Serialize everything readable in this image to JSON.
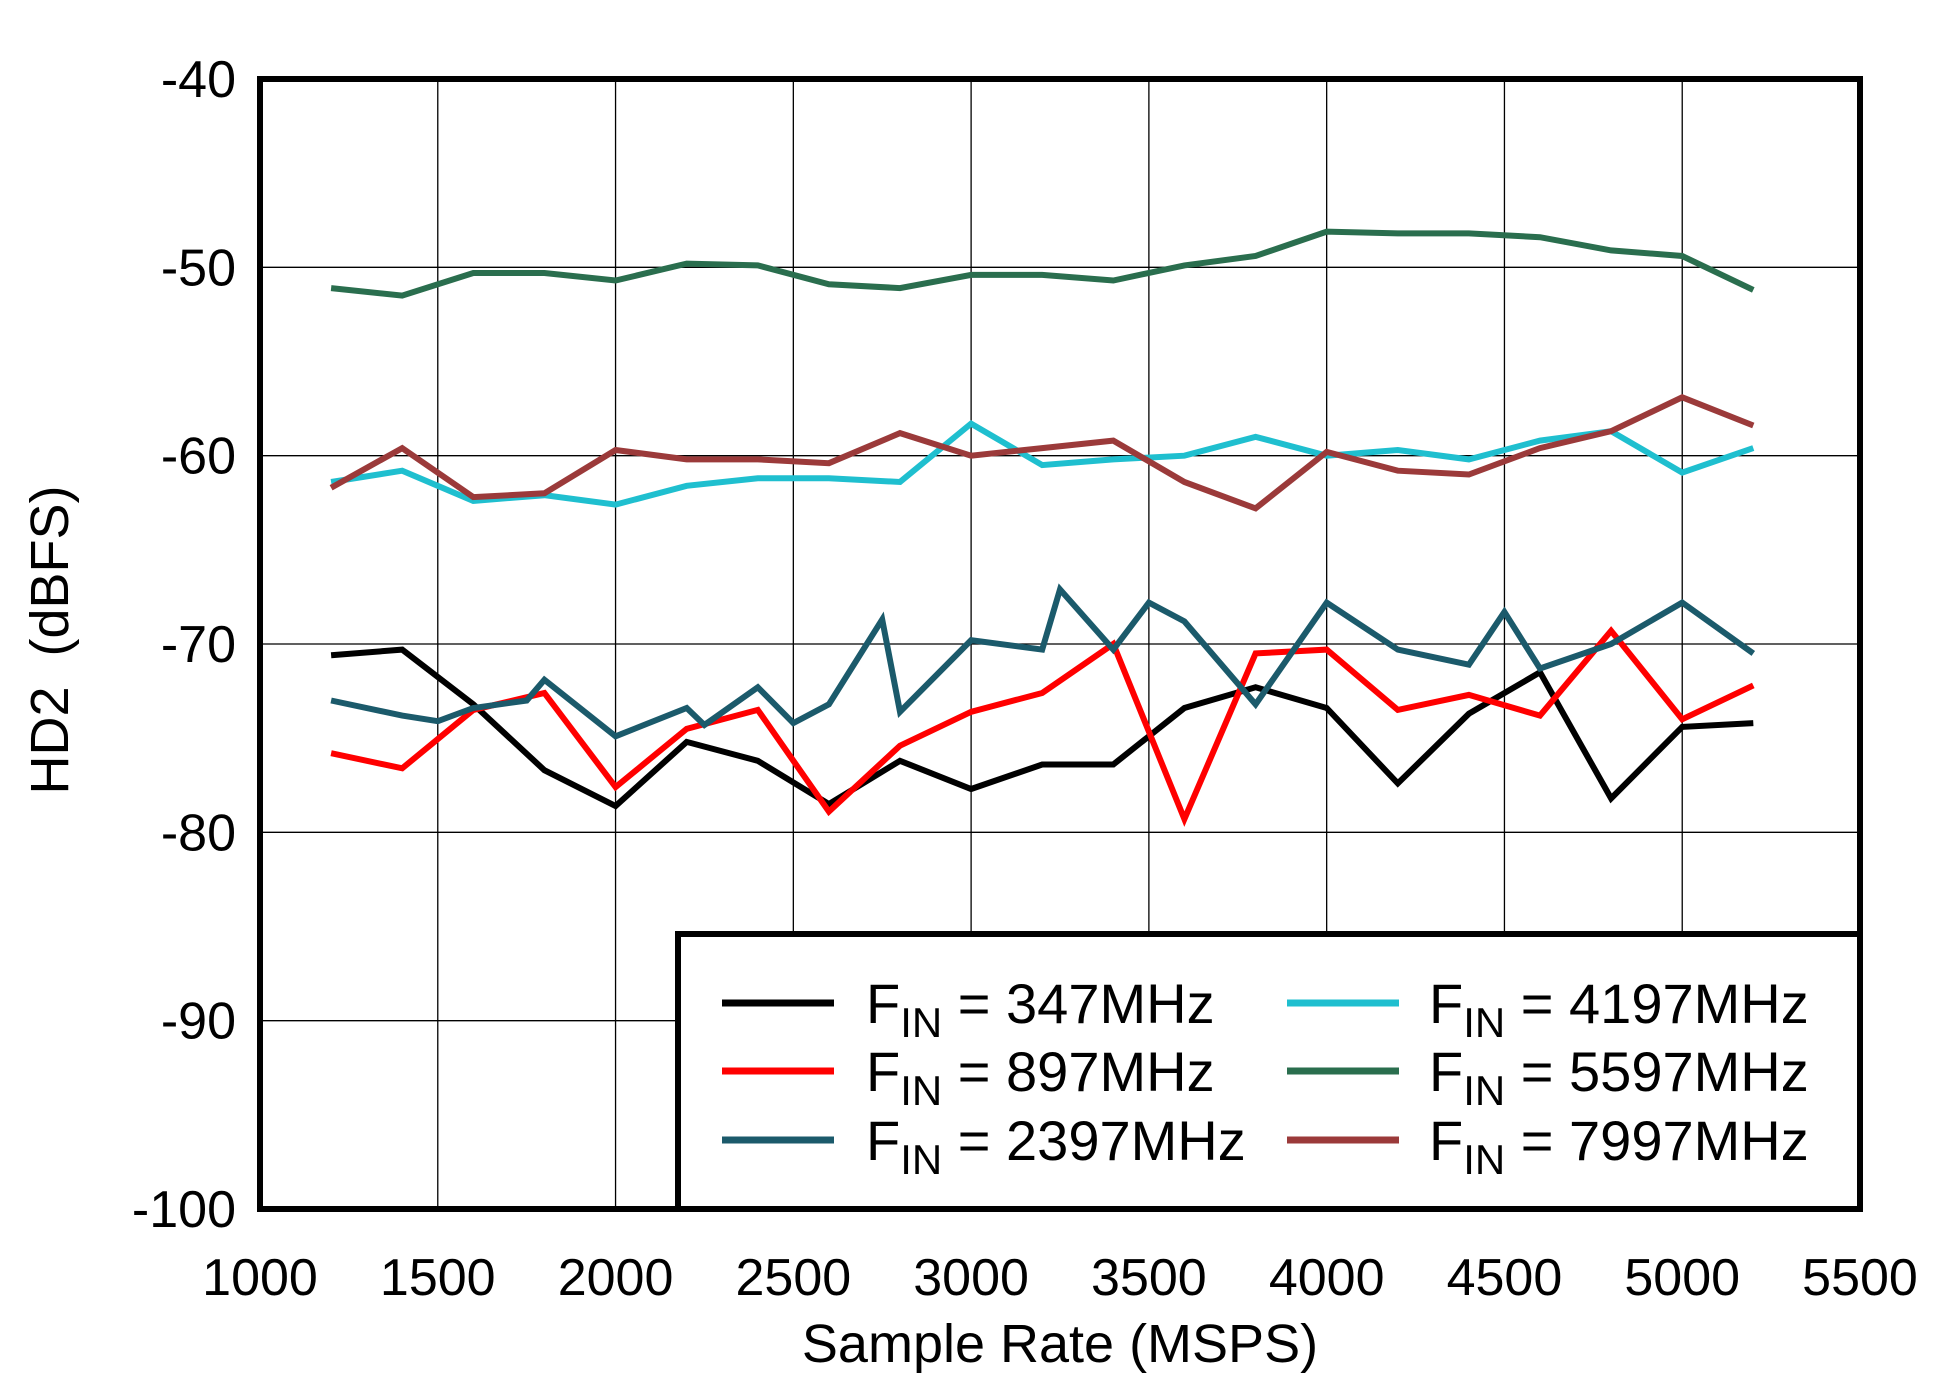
{
  "chart_data": {
    "type": "line",
    "xlabel": "Sample Rate  (MSPS)",
    "ylabel": "HD2  (dBFS)",
    "xlim": [
      1000,
      5500
    ],
    "ylim": [
      -100,
      -40
    ],
    "xticks": [
      1000,
      1500,
      2000,
      2500,
      3000,
      3500,
      4000,
      4500,
      5000,
      5500
    ],
    "yticks": [
      -40,
      -50,
      -60,
      -70,
      -80,
      -90,
      -100
    ],
    "grid": true,
    "legend_position": "bottom-right",
    "series": [
      {
        "name": "FIN = 347MHz",
        "name_main": "F",
        "name_sub": "IN",
        "name_rest": " = 347MHz",
        "color": "#000000",
        "x": [
          1200,
          1400,
          1600,
          1800,
          2000,
          2200,
          2400,
          2600,
          2800,
          3000,
          3200,
          3400,
          3600,
          3800,
          4000,
          4200,
          4400,
          4600,
          4800,
          5000,
          5200
        ],
        "y": [
          -70.6,
          -70.3,
          -73.2,
          -76.7,
          -78.6,
          -75.2,
          -76.2,
          -78.5,
          -76.2,
          -77.7,
          -76.4,
          -76.4,
          -73.4,
          -72.3,
          -73.4,
          -77.4,
          -73.7,
          -71.5,
          -78.2,
          -74.4,
          -74.2
        ]
      },
      {
        "name": "FIN = 897MHz",
        "name_main": "F",
        "name_sub": "IN",
        "name_rest": " = 897MHz",
        "color": "#ff0000",
        "x": [
          1200,
          1400,
          1600,
          1800,
          2000,
          2200,
          2400,
          2600,
          2800,
          3000,
          3200,
          3400,
          3600,
          3800,
          4000,
          4200,
          4400,
          4600,
          4800,
          5000,
          5200
        ],
        "y": [
          -75.8,
          -76.6,
          -73.5,
          -72.6,
          -77.6,
          -74.5,
          -73.5,
          -78.9,
          -75.4,
          -73.6,
          -72.6,
          -70.0,
          -79.3,
          -70.5,
          -70.3,
          -73.5,
          -72.7,
          -73.8,
          -69.3,
          -74.0,
          -72.2
        ]
      },
      {
        "name": "FIN = 2397MHz",
        "name_main": "F",
        "name_sub": "IN",
        "name_rest": " = 2397MHz",
        "color": "#1b5a6b",
        "x": [
          1200,
          1400,
          1500,
          1600,
          1750,
          1800,
          2000,
          2200,
          2250,
          2400,
          2500,
          2600,
          2750,
          2800,
          3000,
          3200,
          3250,
          3400,
          3500,
          3600,
          3800,
          4000,
          4200,
          4400,
          4500,
          4600,
          4800,
          5000,
          5200
        ],
        "y": [
          -73.0,
          -73.8,
          -74.1,
          -73.4,
          -73.0,
          -71.9,
          -74.9,
          -73.4,
          -74.3,
          -72.3,
          -74.2,
          -73.2,
          -68.7,
          -73.6,
          -69.8,
          -70.3,
          -67.1,
          -70.3,
          -67.8,
          -68.8,
          -73.2,
          -67.8,
          -70.3,
          -71.1,
          -68.3,
          -71.3,
          -70.0,
          -67.8,
          -70.5
        ]
      },
      {
        "name": "FIN = 4197MHz",
        "name_main": "F",
        "name_sub": "IN",
        "name_rest": " = 4197MHz",
        "color": "#1fbfcf",
        "x": [
          1200,
          1400,
          1600,
          1800,
          2000,
          2200,
          2400,
          2600,
          2800,
          3000,
          3200,
          3400,
          3600,
          3800,
          4000,
          4200,
          4400,
          4600,
          4800,
          5000,
          5200
        ],
        "y": [
          -61.4,
          -60.8,
          -62.4,
          -62.1,
          -62.6,
          -61.6,
          -61.2,
          -61.2,
          -61.4,
          -58.3,
          -60.5,
          -60.2,
          -60.0,
          -59.0,
          -60.0,
          -59.7,
          -60.2,
          -59.2,
          -58.7,
          -60.9,
          -59.6
        ]
      },
      {
        "name": "FIN = 5597MHz",
        "name_main": "F",
        "name_sub": "IN",
        "name_rest": " = 5597MHz",
        "color": "#2a6e4e",
        "x": [
          1200,
          1400,
          1600,
          1800,
          2000,
          2200,
          2400,
          2600,
          2800,
          3000,
          3200,
          3400,
          3600,
          3800,
          4000,
          4200,
          4400,
          4600,
          4800,
          5000,
          5200
        ],
        "y": [
          -51.1,
          -51.5,
          -50.3,
          -50.3,
          -50.7,
          -49.8,
          -49.9,
          -50.9,
          -51.1,
          -50.4,
          -50.4,
          -50.7,
          -49.9,
          -49.4,
          -48.1,
          -48.2,
          -48.2,
          -48.4,
          -49.1,
          -49.4,
          -51.2
        ]
      },
      {
        "name": "FIN = 7997MHz",
        "name_main": "F",
        "name_sub": "IN",
        "name_rest": " = 7997MHz",
        "color": "#9b3a3a",
        "x": [
          1200,
          1400,
          1600,
          1800,
          2000,
          2200,
          2400,
          2600,
          2800,
          3000,
          3200,
          3400,
          3600,
          3800,
          4000,
          4200,
          4400,
          4600,
          4800,
          5000,
          5200
        ],
        "y": [
          -61.7,
          -59.6,
          -62.2,
          -62.0,
          -59.7,
          -60.2,
          -60.2,
          -60.4,
          -58.8,
          -60.0,
          -59.6,
          -59.2,
          -61.4,
          -62.8,
          -59.8,
          -60.8,
          -61.0,
          -59.6,
          -58.7,
          -56.9,
          -58.4
        ]
      }
    ]
  }
}
